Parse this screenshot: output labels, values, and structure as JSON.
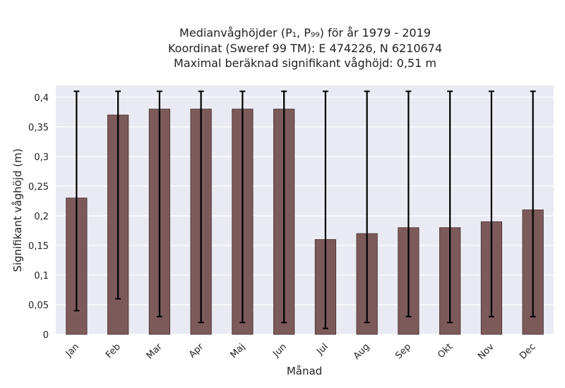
{
  "chart_data": {
    "type": "bar",
    "title_lines": [
      "Medianvåghöjder (P₁, P₉₉) för år 1979 - 2019",
      "Koordinat (Sweref 99 TM): E 474226, N 6210674",
      "Maximal beräknad signifikant våghöjd: 0,51 m"
    ],
    "xlabel": "Månad",
    "ylabel": "Signifikant våghöjd (m)",
    "categories": [
      "Jan",
      "Feb",
      "Mar",
      "Apr",
      "Maj",
      "Jun",
      "Jul",
      "Aug",
      "Sep",
      "Okt",
      "Nov",
      "Dec"
    ],
    "values": [
      0.23,
      0.37,
      0.38,
      0.38,
      0.38,
      0.38,
      0.16,
      0.17,
      0.18,
      0.18,
      0.19,
      0.21
    ],
    "error_low": [
      0.04,
      0.06,
      0.03,
      0.02,
      0.02,
      0.02,
      0.01,
      0.02,
      0.03,
      0.02,
      0.03,
      0.03
    ],
    "error_high": [
      0.41,
      0.41,
      0.41,
      0.41,
      0.41,
      0.41,
      0.41,
      0.41,
      0.41,
      0.41,
      0.41,
      0.41
    ],
    "ylim": [
      0,
      0.42
    ],
    "yticks": [
      0,
      0.05,
      0.1,
      0.15,
      0.2,
      0.25,
      0.3,
      0.35,
      0.4
    ],
    "ytick_labels": [
      "0",
      "0,05",
      "0,1",
      "0,15",
      "0,2",
      "0,25",
      "0,3",
      "0,35",
      "0,4"
    ],
    "grid": true,
    "colors": {
      "bar_fill": "#7d5a5a",
      "bar_edge": "#3d2a2a",
      "background": "#eaeaf2",
      "grid": "#ffffff",
      "error_bar": "#000000"
    }
  }
}
